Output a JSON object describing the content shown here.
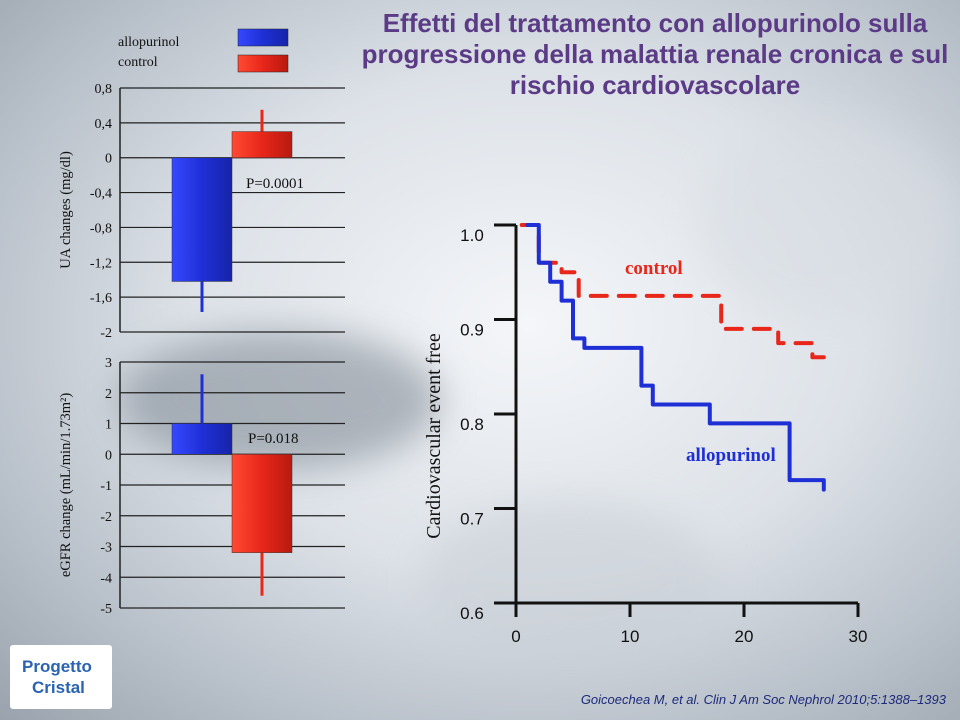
{
  "title": "Effetti del trattamento con allopurinolo sulla progressione della malattia renale cronica e sul rischio cardiovascolare",
  "citation": "Goicoechea M, et al. Clin J Am Soc Nephrol 2010;5:1388–1393",
  "logo": {
    "line1": "Progetto",
    "line2": "Cristal"
  },
  "colors": {
    "allopurinol": "#1f2fd6",
    "control": "#e8261a",
    "title": "#5b3a86"
  },
  "chart_data": [
    {
      "type": "bar",
      "ylabel": "UA changes (mg/dl)",
      "ylim": [
        -2,
        0.8
      ],
      "yticks": [
        "0,8",
        "0,4",
        "0",
        "-0,4",
        "-0,8",
        "-1,2",
        "-1,6",
        "-2"
      ],
      "series": [
        {
          "name": "allopurinol",
          "values": [
            -1.42
          ],
          "error": [
            0.35
          ]
        },
        {
          "name": "control",
          "values": [
            0.3
          ],
          "error": [
            0.25
          ]
        }
      ],
      "annotation": "P=0.0001",
      "legend": [
        "allopurinol",
        "control"
      ]
    },
    {
      "type": "bar",
      "ylabel": "eGFR change (mL/min/1.73m²)",
      "ylim": [
        -5,
        3
      ],
      "yticks": [
        "3",
        "2",
        "1",
        "0",
        "-1",
        "-2",
        "-3",
        "-4",
        "-5"
      ],
      "series": [
        {
          "name": "allopurinol",
          "values": [
            1.0
          ],
          "error": [
            1.6
          ]
        },
        {
          "name": "control",
          "values": [
            -3.2
          ],
          "error": [
            1.4
          ]
        }
      ],
      "annotation": "P=0.018"
    },
    {
      "type": "line",
      "ylabel": "Cardiovascular event free",
      "xlim": [
        0,
        30
      ],
      "ylim": [
        0.6,
        1.0
      ],
      "xticks": [
        "0",
        "10",
        "20",
        "30"
      ],
      "yticks": [
        "1.0",
        "0.9",
        "0.8",
        "0.7",
        "0.6"
      ],
      "series": [
        {
          "name": "control",
          "style": "dashed",
          "x": [
            0.5,
            2,
            2,
            4,
            4,
            5.5,
            5.5,
            18,
            18,
            23,
            23,
            26,
            26,
            27
          ],
          "y": [
            1.0,
            1.0,
            0.96,
            0.96,
            0.95,
            0.95,
            0.925,
            0.925,
            0.89,
            0.89,
            0.875,
            0.875,
            0.86,
            0.86
          ]
        },
        {
          "name": "allopurinol",
          "style": "solid",
          "x": [
            1,
            2,
            2,
            3,
            3,
            4,
            4,
            5,
            5,
            6,
            6,
            11,
            11,
            12,
            12,
            17,
            17,
            24,
            24,
            27,
            27
          ],
          "y": [
            1.0,
            1.0,
            0.96,
            0.96,
            0.94,
            0.94,
            0.92,
            0.92,
            0.88,
            0.88,
            0.87,
            0.87,
            0.83,
            0.83,
            0.81,
            0.81,
            0.79,
            0.79,
            0.73,
            0.73,
            0.72
          ]
        }
      ],
      "series_labels": [
        "control",
        "allopurinol"
      ]
    }
  ]
}
